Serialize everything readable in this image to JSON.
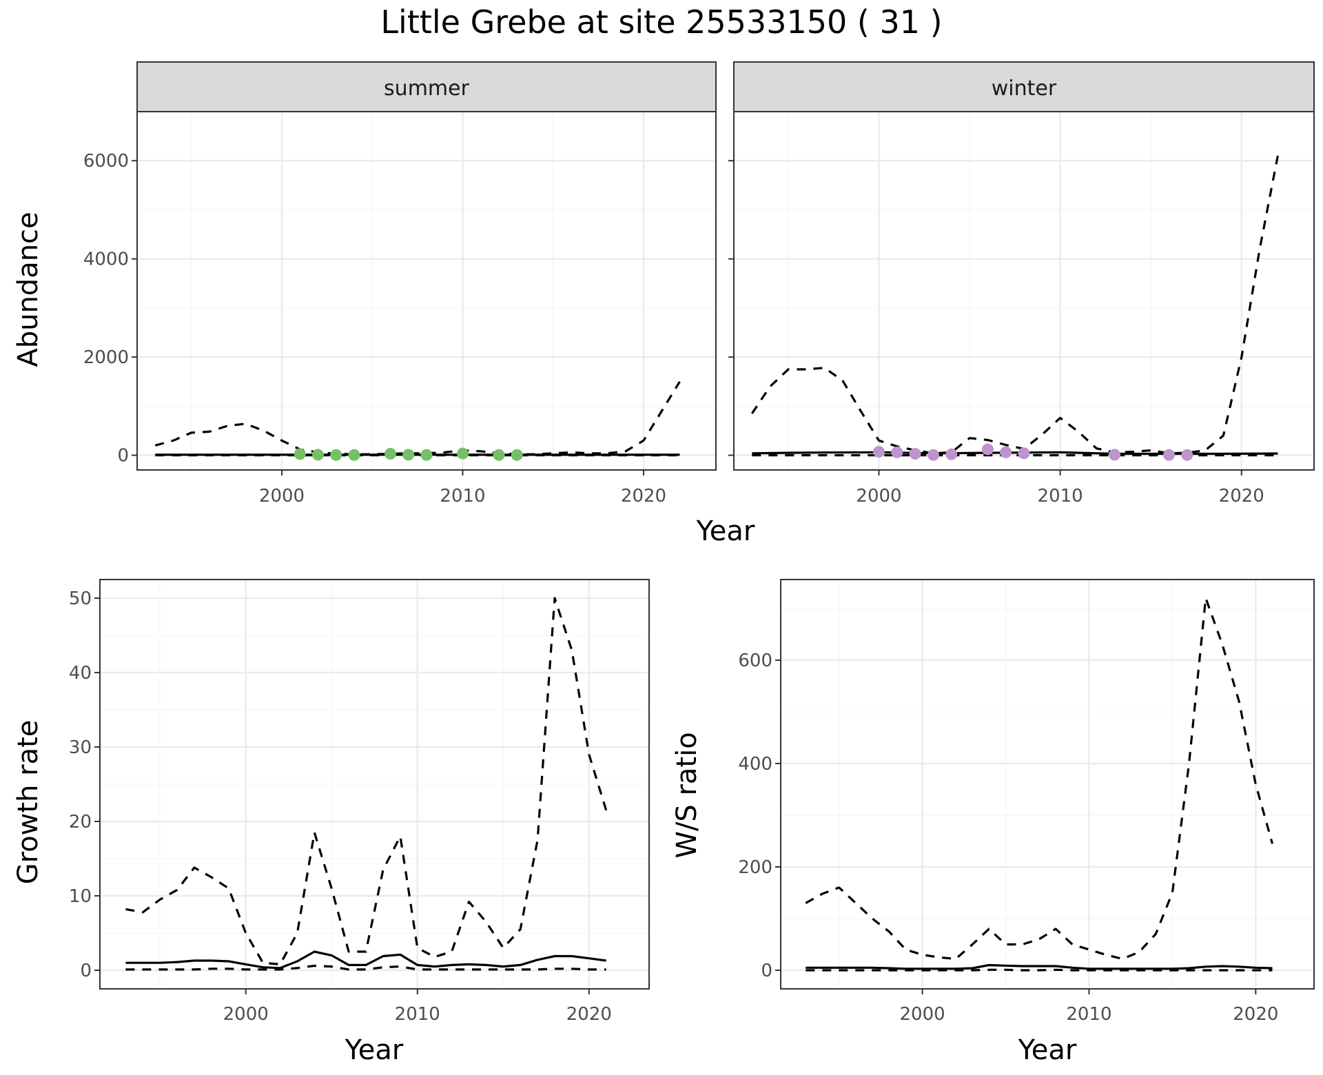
{
  "figure": {
    "title": "Little Grebe at site 25533150 ( 31 )"
  },
  "colors": {
    "summer_points": "#74c165",
    "winter_points": "#bd94cc",
    "line": "#000000",
    "grid_major": "#ebebeb",
    "grid_minor": "#f5f5f5",
    "strip_fill": "#d9d9d9",
    "panel_border": "#333333"
  },
  "chart_data": [
    {
      "id": "abundance-summer",
      "type": "line",
      "strip": "summer",
      "xlabel": "Year",
      "ylabel": "Abundance",
      "xlim": [
        1992,
        2024
      ],
      "ylim": [
        -300,
        7000
      ],
      "xticks": [
        2000,
        2010,
        2020
      ],
      "yticks": [
        0,
        2000,
        4000,
        6000
      ],
      "series": [
        {
          "style": "solid",
          "x": [
            1993,
            1994,
            1995,
            1996,
            1997,
            1998,
            1999,
            2000,
            2001,
            2002,
            2003,
            2004,
            2005,
            2006,
            2007,
            2008,
            2009,
            2010,
            2011,
            2012,
            2013,
            2014,
            2015,
            2016,
            2017,
            2018,
            2019,
            2020,
            2021,
            2022
          ],
          "y": [
            10,
            10,
            10,
            10,
            10,
            10,
            10,
            10,
            10,
            10,
            10,
            10,
            10,
            10,
            10,
            10,
            10,
            10,
            10,
            10,
            10,
            10,
            10,
            10,
            10,
            10,
            10,
            10,
            10,
            10
          ]
        },
        {
          "style": "dashed",
          "x": [
            1993,
            1994,
            1995,
            1996,
            1997,
            1998,
            1999,
            2000,
            2001,
            2002,
            2003,
            2004,
            2005,
            2006,
            2007,
            2008,
            2009,
            2010,
            2011,
            2012,
            2013,
            2014,
            2015,
            2016,
            2017,
            2018,
            2019,
            2020,
            2021,
            2022
          ],
          "y": [
            200,
            300,
            460,
            480,
            600,
            640,
            500,
            300,
            120,
            60,
            30,
            20,
            20,
            30,
            40,
            40,
            60,
            100,
            80,
            40,
            20,
            20,
            40,
            60,
            40,
            40,
            80,
            300,
            900,
            1500
          ]
        },
        {
          "style": "dashed",
          "x": [
            1993,
            2022
          ],
          "y": [
            0,
            0
          ]
        }
      ],
      "points": {
        "x": [
          2001,
          2002,
          2003,
          2004,
          2006,
          2007,
          2008,
          2010,
          2012,
          2013
        ],
        "y": [
          25,
          10,
          5,
          5,
          30,
          10,
          5,
          35,
          5,
          5
        ]
      }
    },
    {
      "id": "abundance-winter",
      "type": "line",
      "strip": "winter",
      "xlabel": "",
      "ylabel": "",
      "xlim": [
        1992,
        2024
      ],
      "ylim": [
        -300,
        7000
      ],
      "xticks": [
        2000,
        2010,
        2020
      ],
      "yticks": [
        0,
        2000,
        4000,
        6000
      ],
      "series": [
        {
          "style": "solid",
          "x": [
            1993,
            1995,
            1997,
            2000,
            2003,
            2006,
            2010,
            2013,
            2016,
            2019,
            2022
          ],
          "y": [
            40,
            50,
            55,
            60,
            40,
            50,
            60,
            30,
            30,
            30,
            35
          ]
        },
        {
          "style": "dashed",
          "x": [
            1993,
            1994,
            1995,
            1996,
            1997,
            1998,
            1999,
            2000,
            2001,
            2002,
            2003,
            2004,
            2005,
            2006,
            2007,
            2008,
            2009,
            2010,
            2011,
            2012,
            2013,
            2014,
            2015,
            2016,
            2017,
            2018,
            2019,
            2020,
            2021,
            2022
          ],
          "y": [
            850,
            1400,
            1750,
            1750,
            1780,
            1520,
            900,
            300,
            180,
            100,
            40,
            60,
            350,
            310,
            210,
            130,
            420,
            760,
            480,
            140,
            60,
            70,
            100,
            40,
            50,
            100,
            400,
            2000,
            4200,
            6100
          ]
        },
        {
          "style": "dashed",
          "x": [
            1993,
            2022
          ],
          "y": [
            0,
            0
          ]
        }
      ],
      "points": {
        "x": [
          2000,
          2001,
          2002,
          2003,
          2004,
          2006,
          2007,
          2008,
          2013,
          2016,
          2017
        ],
        "y": [
          70,
          60,
          30,
          5,
          20,
          120,
          60,
          40,
          10,
          5,
          5
        ]
      }
    },
    {
      "id": "growth-rate",
      "type": "line",
      "xlabel": "Year",
      "ylabel": "Growth rate",
      "xlim": [
        1991.5,
        2023.5
      ],
      "ylim": [
        -2.5,
        52.5
      ],
      "xticks": [
        2000,
        2010,
        2020
      ],
      "yticks": [
        0,
        10,
        20,
        30,
        40,
        50
      ],
      "series": [
        {
          "style": "solid",
          "x": [
            1993,
            1994,
            1995,
            1996,
            1997,
            1998,
            1999,
            2000,
            2001,
            2002,
            2003,
            2004,
            2005,
            2006,
            2007,
            2008,
            2009,
            2010,
            2011,
            2012,
            2013,
            2014,
            2015,
            2016,
            2017,
            2018,
            2019,
            2020,
            2021
          ],
          "y": [
            1,
            1,
            1,
            1.1,
            1.3,
            1.3,
            1.2,
            0.8,
            0.4,
            0.3,
            1.2,
            2.5,
            2.0,
            0.7,
            0.7,
            1.9,
            2.1,
            0.7,
            0.5,
            0.7,
            0.8,
            0.7,
            0.5,
            0.7,
            1.4,
            1.9,
            1.9,
            1.6,
            1.3
          ]
        },
        {
          "style": "dashed",
          "x": [
            1993,
            1994,
            1995,
            1996,
            1997,
            1998,
            1999,
            2000,
            2001,
            2002,
            2003,
            2004,
            2005,
            2006,
            2007,
            2008,
            2009,
            2010,
            2011,
            2012,
            2013,
            2014,
            2015,
            2016,
            2017,
            2018,
            2019,
            2020,
            2021
          ],
          "y": [
            8.2,
            7.8,
            9.5,
            10.8,
            13.8,
            12.5,
            11,
            5,
            1,
            0.8,
            5,
            18.5,
            11,
            2.5,
            2.5,
            13.5,
            18,
            3,
            1.8,
            2.5,
            9.2,
            6.5,
            3,
            5.5,
            17.5,
            50,
            43,
            29,
            21.5
          ]
        },
        {
          "style": "dashed",
          "x": [
            1993,
            1994,
            1995,
            1996,
            1997,
            1998,
            1999,
            2000,
            2001,
            2002,
            2003,
            2004,
            2005,
            2006,
            2007,
            2008,
            2009,
            2010,
            2011,
            2012,
            2013,
            2014,
            2015,
            2016,
            2017,
            2018,
            2019,
            2020,
            2021
          ],
          "y": [
            0.1,
            0.1,
            0.1,
            0.1,
            0.1,
            0.2,
            0.2,
            0.1,
            0.1,
            0.1,
            0.3,
            0.6,
            0.5,
            0.1,
            0.1,
            0.4,
            0.5,
            0.1,
            0.1,
            0.1,
            0.1,
            0.1,
            0.1,
            0.1,
            0.1,
            0.2,
            0.2,
            0.1,
            0.1
          ]
        }
      ]
    },
    {
      "id": "ws-ratio",
      "type": "line",
      "xlabel": "Year",
      "ylabel": "W/S ratio",
      "xlim": [
        1991.5,
        2023.5
      ],
      "ylim": [
        -36,
        756
      ],
      "xticks": [
        2000,
        2010,
        2020
      ],
      "yticks": [
        0,
        200,
        400,
        600
      ],
      "series": [
        {
          "style": "solid",
          "x": [
            1993,
            1994,
            1995,
            1996,
            1997,
            1998,
            1999,
            2000,
            2001,
            2002,
            2003,
            2004,
            2005,
            2006,
            2007,
            2008,
            2009,
            2010,
            2011,
            2012,
            2013,
            2014,
            2015,
            2016,
            2017,
            2018,
            2019,
            2020,
            2021
          ],
          "y": [
            5,
            5,
            5,
            5,
            5,
            4,
            3,
            3,
            3,
            3,
            4,
            10,
            9,
            8,
            8,
            8,
            5,
            3,
            3,
            3,
            3,
            3,
            3,
            4,
            7,
            8,
            7,
            5,
            4
          ]
        },
        {
          "style": "dashed",
          "x": [
            1993,
            1994,
            1995,
            1996,
            1997,
            1998,
            1999,
            2000,
            2001,
            2002,
            2003,
            2004,
            2005,
            2006,
            2007,
            2008,
            2009,
            2010,
            2011,
            2012,
            2013,
            2014,
            2015,
            2016,
            2017,
            2018,
            2019,
            2020,
            2021
          ],
          "y": [
            130,
            148,
            160,
            130,
            100,
            75,
            40,
            30,
            25,
            22,
            50,
            80,
            50,
            50,
            60,
            80,
            50,
            40,
            30,
            22,
            35,
            70,
            150,
            400,
            720,
            630,
            520,
            360,
            245
          ]
        },
        {
          "style": "dashed",
          "x": [
            1993,
            1994,
            1995,
            1996,
            1997,
            1998,
            1999,
            2000,
            2001,
            2002,
            2003,
            2004,
            2005,
            2006,
            2007,
            2008,
            2009,
            2010,
            2011,
            2012,
            2013,
            2014,
            2015,
            2016,
            2017,
            2018,
            2019,
            2020,
            2021
          ],
          "y": [
            0,
            0,
            0,
            0,
            0,
            0,
            0,
            0,
            0,
            0,
            0,
            1,
            1,
            0,
            0,
            1,
            0,
            0,
            0,
            0,
            0,
            0,
            0,
            0,
            0,
            0,
            0,
            0,
            0
          ]
        }
      ]
    }
  ]
}
